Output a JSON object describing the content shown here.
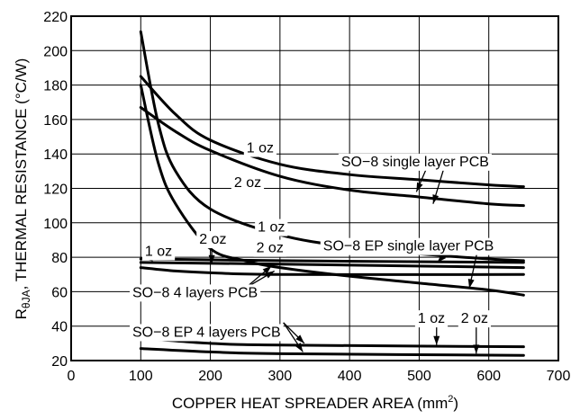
{
  "chart_data": {
    "type": "line",
    "xlabel": "COPPER HEAT SPREADER AREA (mm",
    "xlabel_sup": "2",
    "xlabel_end": ")",
    "ylabel_main": "R",
    "ylabel_sub": "θJA",
    "ylabel_rest": ", THERMAL RESISTANCE (°C/W)",
    "xlim": [
      0,
      700
    ],
    "ylim": [
      20,
      220
    ],
    "x_ticks": [
      0,
      100,
      200,
      300,
      400,
      500,
      600,
      700
    ],
    "y_ticks": [
      20,
      40,
      60,
      80,
      100,
      120,
      140,
      160,
      180,
      200,
      220
    ],
    "grid": true,
    "series": [
      {
        "x": [
          100,
          150,
          200,
          300,
          400,
          500,
          600,
          650
        ],
        "y": [
          185,
          163,
          148,
          134,
          128,
          125,
          122,
          121
        ]
      },
      {
        "x": [
          100,
          150,
          200,
          300,
          400,
          500,
          600,
          650
        ],
        "y": [
          167,
          153,
          142,
          127,
          119,
          115,
          111,
          110
        ]
      },
      {
        "x": [
          100,
          125,
          150,
          200,
          300,
          400,
          500,
          600,
          650
        ],
        "y": [
          211,
          158,
          130,
          108,
          93,
          86,
          82,
          79,
          78
        ]
      },
      {
        "x": [
          100,
          125,
          150,
          200,
          250,
          300,
          400,
          500,
          600,
          650
        ],
        "y": [
          180,
          135,
          111,
          85,
          78,
          74,
          69,
          65,
          61,
          58
        ]
      },
      {
        "x": [
          100,
          300,
          650
        ],
        "y": [
          79,
          78,
          77
        ]
      },
      {
        "x": [
          100,
          300,
          650
        ],
        "y": [
          77,
          76,
          74
        ]
      },
      {
        "x": [
          100,
          150,
          200,
          300,
          650
        ],
        "y": [
          74,
          72,
          71,
          70,
          70
        ]
      },
      {
        "x": [
          100,
          200,
          300,
          650
        ],
        "y": [
          33,
          30,
          29,
          28
        ]
      },
      {
        "x": [
          100,
          200,
          300,
          650
        ],
        "y": [
          27,
          25,
          24,
          23
        ]
      }
    ],
    "annotations": [
      {
        "text": "1 oz",
        "x": 252,
        "y": 144
      },
      {
        "text": "2 oz",
        "x": 234,
        "y": 124
      },
      {
        "text": "SO−8 single layer PCB",
        "x": 388,
        "y": 136
      },
      {
        "text": "1 oz",
        "x": 268,
        "y": 98
      },
      {
        "text": "2 oz",
        "x": 266,
        "y": 86
      },
      {
        "text": "SO−8 EP single layer PCB",
        "x": 362,
        "y": 87
      },
      {
        "text": "1 oz",
        "x": 106,
        "y": 84
      },
      {
        "text": "2 oz",
        "x": 184,
        "y": 91
      },
      {
        "text": "SO−8 4 layers PCB",
        "x": 88,
        "y": 60
      },
      {
        "text": "SO−8 EP 4 layers PCB",
        "x": 88,
        "y": 37
      },
      {
        "text": "1 oz",
        "x": 498,
        "y": 45
      },
      {
        "text": "2 oz",
        "x": 560,
        "y": 45
      }
    ],
    "arrows": [
      {
        "from": [
          512,
          133
        ],
        "to": [
          496,
          118
        ]
      },
      {
        "from": [
          535,
          131
        ],
        "to": [
          520,
          111
        ]
      },
      {
        "from": [
          548,
          86
        ],
        "to": [
          526,
          77
        ]
      },
      {
        "from": [
          585,
          86
        ],
        "to": [
          572,
          62
        ]
      },
      {
        "from": [
          132,
          80
        ],
        "to": [
          104,
          79
        ]
      },
      {
        "from": [
          202,
          84
        ],
        "to": [
          202,
          76
        ]
      },
      {
        "from": [
          250,
          62
        ],
        "to": [
          288,
          75
        ]
      },
      {
        "from": [
          250,
          62
        ],
        "to": [
          292,
          72
        ]
      },
      {
        "from": [
          305,
          42
        ],
        "to": [
          335,
          30
        ]
      },
      {
        "from": [
          305,
          42
        ],
        "to": [
          333,
          25
        ]
      },
      {
        "from": [
          525,
          40
        ],
        "to": [
          525,
          29
        ]
      },
      {
        "from": [
          582,
          40
        ],
        "to": [
          582,
          24
        ]
      }
    ]
  }
}
